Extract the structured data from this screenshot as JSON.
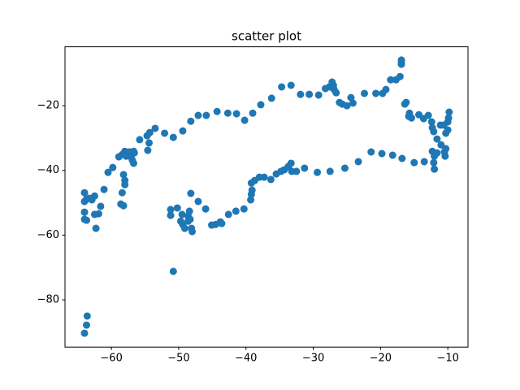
{
  "chart_data": {
    "type": "scatter",
    "title": "scatter plot",
    "color": "#1f77b4",
    "grid": false,
    "xlim": [
      -66.9,
      -7.0
    ],
    "ylim": [
      -94.6,
      -1.8
    ],
    "xticks": [
      {
        "value": -60,
        "label": "−60"
      },
      {
        "value": -50,
        "label": "−50"
      },
      {
        "value": -40,
        "label": "−40"
      },
      {
        "value": -30,
        "label": "−30"
      },
      {
        "value": -20,
        "label": "−20"
      },
      {
        "value": -10,
        "label": "−10"
      }
    ],
    "yticks": [
      {
        "value": -80,
        "label": "−80"
      },
      {
        "value": -60,
        "label": "−60"
      },
      {
        "value": -40,
        "label": "−40"
      },
      {
        "value": -20,
        "label": "−20"
      }
    ],
    "x": [
      -64.0,
      -63.7,
      -63.6,
      -50.8,
      -64.0,
      -63.7,
      -64.0,
      -64.0,
      -63.7,
      -64.0,
      -63.3,
      -62.9,
      -62.5,
      -62.5,
      -62.3,
      -61.9,
      -61.6,
      -61.1,
      -60.5,
      -59.8,
      -58.9,
      -58.4,
      -58.6,
      -58.4,
      -58.2,
      -58.0,
      -58.0,
      -58.2,
      -57.8,
      -58.0,
      -57.3,
      -57.1,
      -56.9,
      -56.7,
      -56.6,
      -56.7,
      -55.8,
      -54.7,
      -54.6,
      -54.4,
      -54.3,
      -53.5,
      -52.1,
      -50.8,
      -49.4,
      -48.2,
      -47.1,
      -45.9,
      -44.3,
      -42.7,
      -41.4,
      -40.2,
      -39.0,
      -37.8,
      -36.2,
      -34.7,
      -33.3,
      -31.9,
      -30.6,
      -29.2,
      -28.2,
      -27.6,
      -27.2,
      -27.0,
      -26.9,
      -26.6,
      -26.1,
      -25.7,
      -25.0,
      -24.4,
      -24.1,
      -22.4,
      -20.7,
      -19.7,
      -19.2,
      -18.5,
      -17.7,
      -17.1,
      -16.9,
      -16.9,
      -16.9,
      -16.4,
      -16.2,
      -15.8,
      -15.4,
      -15.7,
      -14.3,
      -13.6,
      -12.9,
      -12.3,
      -12.4,
      -12.1,
      -11.6,
      -11.0,
      -11.1,
      -10.6,
      -10.0,
      -9.9,
      -9.8,
      -10.0,
      -10.3,
      -10.3,
      -10.4,
      -10.5,
      -11.6,
      -12.0,
      -12.1,
      -12.0,
      -12.3,
      -13.5,
      -15.0,
      -16.8,
      -18.2,
      -19.8,
      -21.4,
      -23.3,
      -25.3,
      -27.5,
      -29.4,
      -31.3,
      -32.5,
      -33.2,
      -33.3,
      -33.7,
      -34.3,
      -34.8,
      -35.5,
      -36.3,
      -37.3,
      -38.0,
      -38.7,
      -39.2,
      -39.1,
      -39.2,
      -39.3,
      -40.3,
      -41.5,
      -42.6,
      -43.6,
      -43.8,
      -44.5,
      -45.1,
      -46.0,
      -47.1,
      -48.2,
      -48.0,
      -48.1,
      -48.6,
      -49.1,
      -49.4,
      -49.7,
      -49.5,
      -50.2,
      -51.2,
      -51.2,
      -48.4,
      -48.6,
      -48.3
    ],
    "y": [
      -90.3,
      -87.8,
      -85.0,
      -71.2,
      -55.1,
      -55.4,
      -52.9,
      -49.6,
      -48.9,
      -46.9,
      -48.6,
      -49.1,
      -47.9,
      -53.6,
      -57.9,
      -53.4,
      -51.1,
      -45.9,
      -40.6,
      -39.1,
      -35.8,
      -35.1,
      -50.4,
      -46.9,
      -41.3,
      -44.4,
      -43.1,
      -50.9,
      -35.6,
      -34.1,
      -34.3,
      -35.8,
      -36.8,
      -37.8,
      -34.6,
      -34.1,
      -30.5,
      -29.3,
      -33.8,
      -31.5,
      -28.3,
      -27.0,
      -28.5,
      -29.8,
      -27.8,
      -24.8,
      -23.0,
      -23.0,
      -21.8,
      -22.3,
      -22.5,
      -24.5,
      -22.3,
      -19.7,
      -17.7,
      -14.2,
      -13.7,
      -16.5,
      -16.5,
      -16.7,
      -14.7,
      -14.2,
      -12.7,
      -13.7,
      -15.0,
      -16.0,
      -19.0,
      -19.5,
      -20.0,
      -17.5,
      -19.2,
      -16.2,
      -16.2,
      -16.2,
      -15.0,
      -12.0,
      -12.0,
      -11.0,
      -7.2,
      -5.9,
      -6.6,
      -19.5,
      -19.0,
      -23.3,
      -23.8,
      -22.3,
      -22.8,
      -24.0,
      -23.0,
      -26.8,
      -25.0,
      -28.0,
      -30.3,
      -32.1,
      -26.0,
      -26.0,
      -25.0,
      -23.8,
      -22.0,
      -27.5,
      -28.5,
      -33.3,
      -35.6,
      -34.3,
      -34.6,
      -35.6,
      -37.6,
      -39.6,
      -34.1,
      -37.3,
      -37.6,
      -36.3,
      -35.3,
      -34.8,
      -34.3,
      -37.3,
      -39.3,
      -40.3,
      -40.6,
      -39.3,
      -40.3,
      -40.3,
      -37.8,
      -38.8,
      -39.8,
      -40.3,
      -41.1,
      -42.8,
      -42.1,
      -42.1,
      -43.1,
      -43.9,
      -46.1,
      -47.4,
      -49.1,
      -51.9,
      -52.6,
      -53.6,
      -56.4,
      -55.9,
      -56.7,
      -56.9,
      -51.9,
      -49.6,
      -47.1,
      -58.9,
      -57.9,
      -55.7,
      -57.9,
      -56.7,
      -55.7,
      -53.6,
      -51.6,
      -52.1,
      -53.9,
      -52.6,
      -54.1,
      -55.1
    ]
  }
}
